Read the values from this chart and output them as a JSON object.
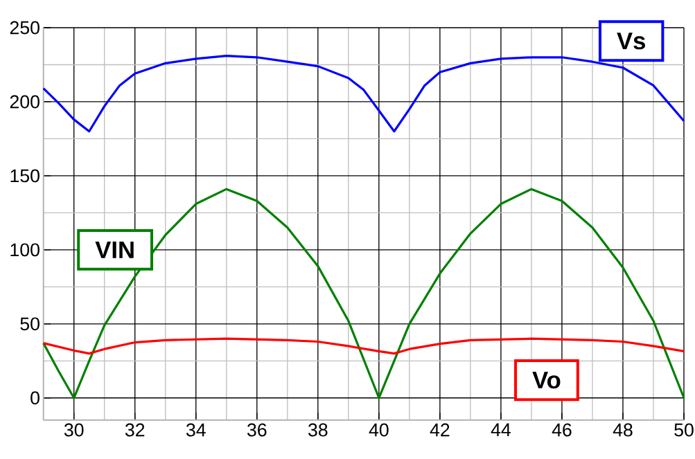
{
  "chart_data": {
    "type": "line",
    "xlim": [
      29,
      50
    ],
    "ylim": [
      -15,
      250
    ],
    "xticks": [
      30,
      32,
      34,
      36,
      38,
      40,
      42,
      44,
      46,
      48,
      50
    ],
    "yticks": [
      0,
      50,
      100,
      150,
      200,
      250
    ],
    "grid": true,
    "marker": "none",
    "line_style": "solid",
    "series": [
      {
        "name": "Vs",
        "color": "#0000ff",
        "x": [
          29,
          29.5,
          30,
          30.5,
          31,
          31.5,
          32,
          33,
          34,
          35,
          36,
          37,
          38,
          39,
          39.5,
          40,
          40.5,
          41,
          41.5,
          42,
          43,
          44,
          45,
          46,
          47,
          48,
          49,
          49.5,
          50
        ],
        "values": [
          209,
          199,
          188,
          180,
          197,
          211,
          219,
          226,
          229,
          231,
          230,
          227,
          224,
          216,
          208,
          194,
          180,
          195,
          211,
          220,
          226,
          229,
          230,
          230,
          227,
          223,
          211,
          199,
          187
        ]
      },
      {
        "name": "VIN",
        "color": "#008000",
        "x": [
          29,
          29.5,
          30,
          30.5,
          31,
          32,
          33,
          34,
          35,
          36,
          37,
          38,
          39,
          39.5,
          40,
          40.5,
          41,
          42,
          43,
          44,
          45,
          46,
          47,
          48,
          49,
          49.5,
          50
        ],
        "values": [
          37,
          18,
          0,
          25,
          49,
          82,
          110,
          131,
          141,
          133,
          115,
          89,
          52,
          26,
          0,
          25,
          50,
          84,
          111,
          131,
          141,
          133,
          115,
          88,
          52,
          26,
          0
        ]
      },
      {
        "name": "Vo",
        "color": "#ff0000",
        "x": [
          29,
          30,
          30.5,
          31,
          32,
          33,
          35,
          37,
          38,
          39,
          40,
          40.5,
          41,
          42,
          43,
          45,
          47,
          48,
          49,
          50
        ],
        "values": [
          37,
          32,
          30,
          33,
          37.5,
          39,
          40,
          39,
          38,
          35,
          31.5,
          30,
          33,
          36.5,
          39,
          40,
          39,
          38,
          35,
          31.5
        ]
      }
    ]
  }
}
